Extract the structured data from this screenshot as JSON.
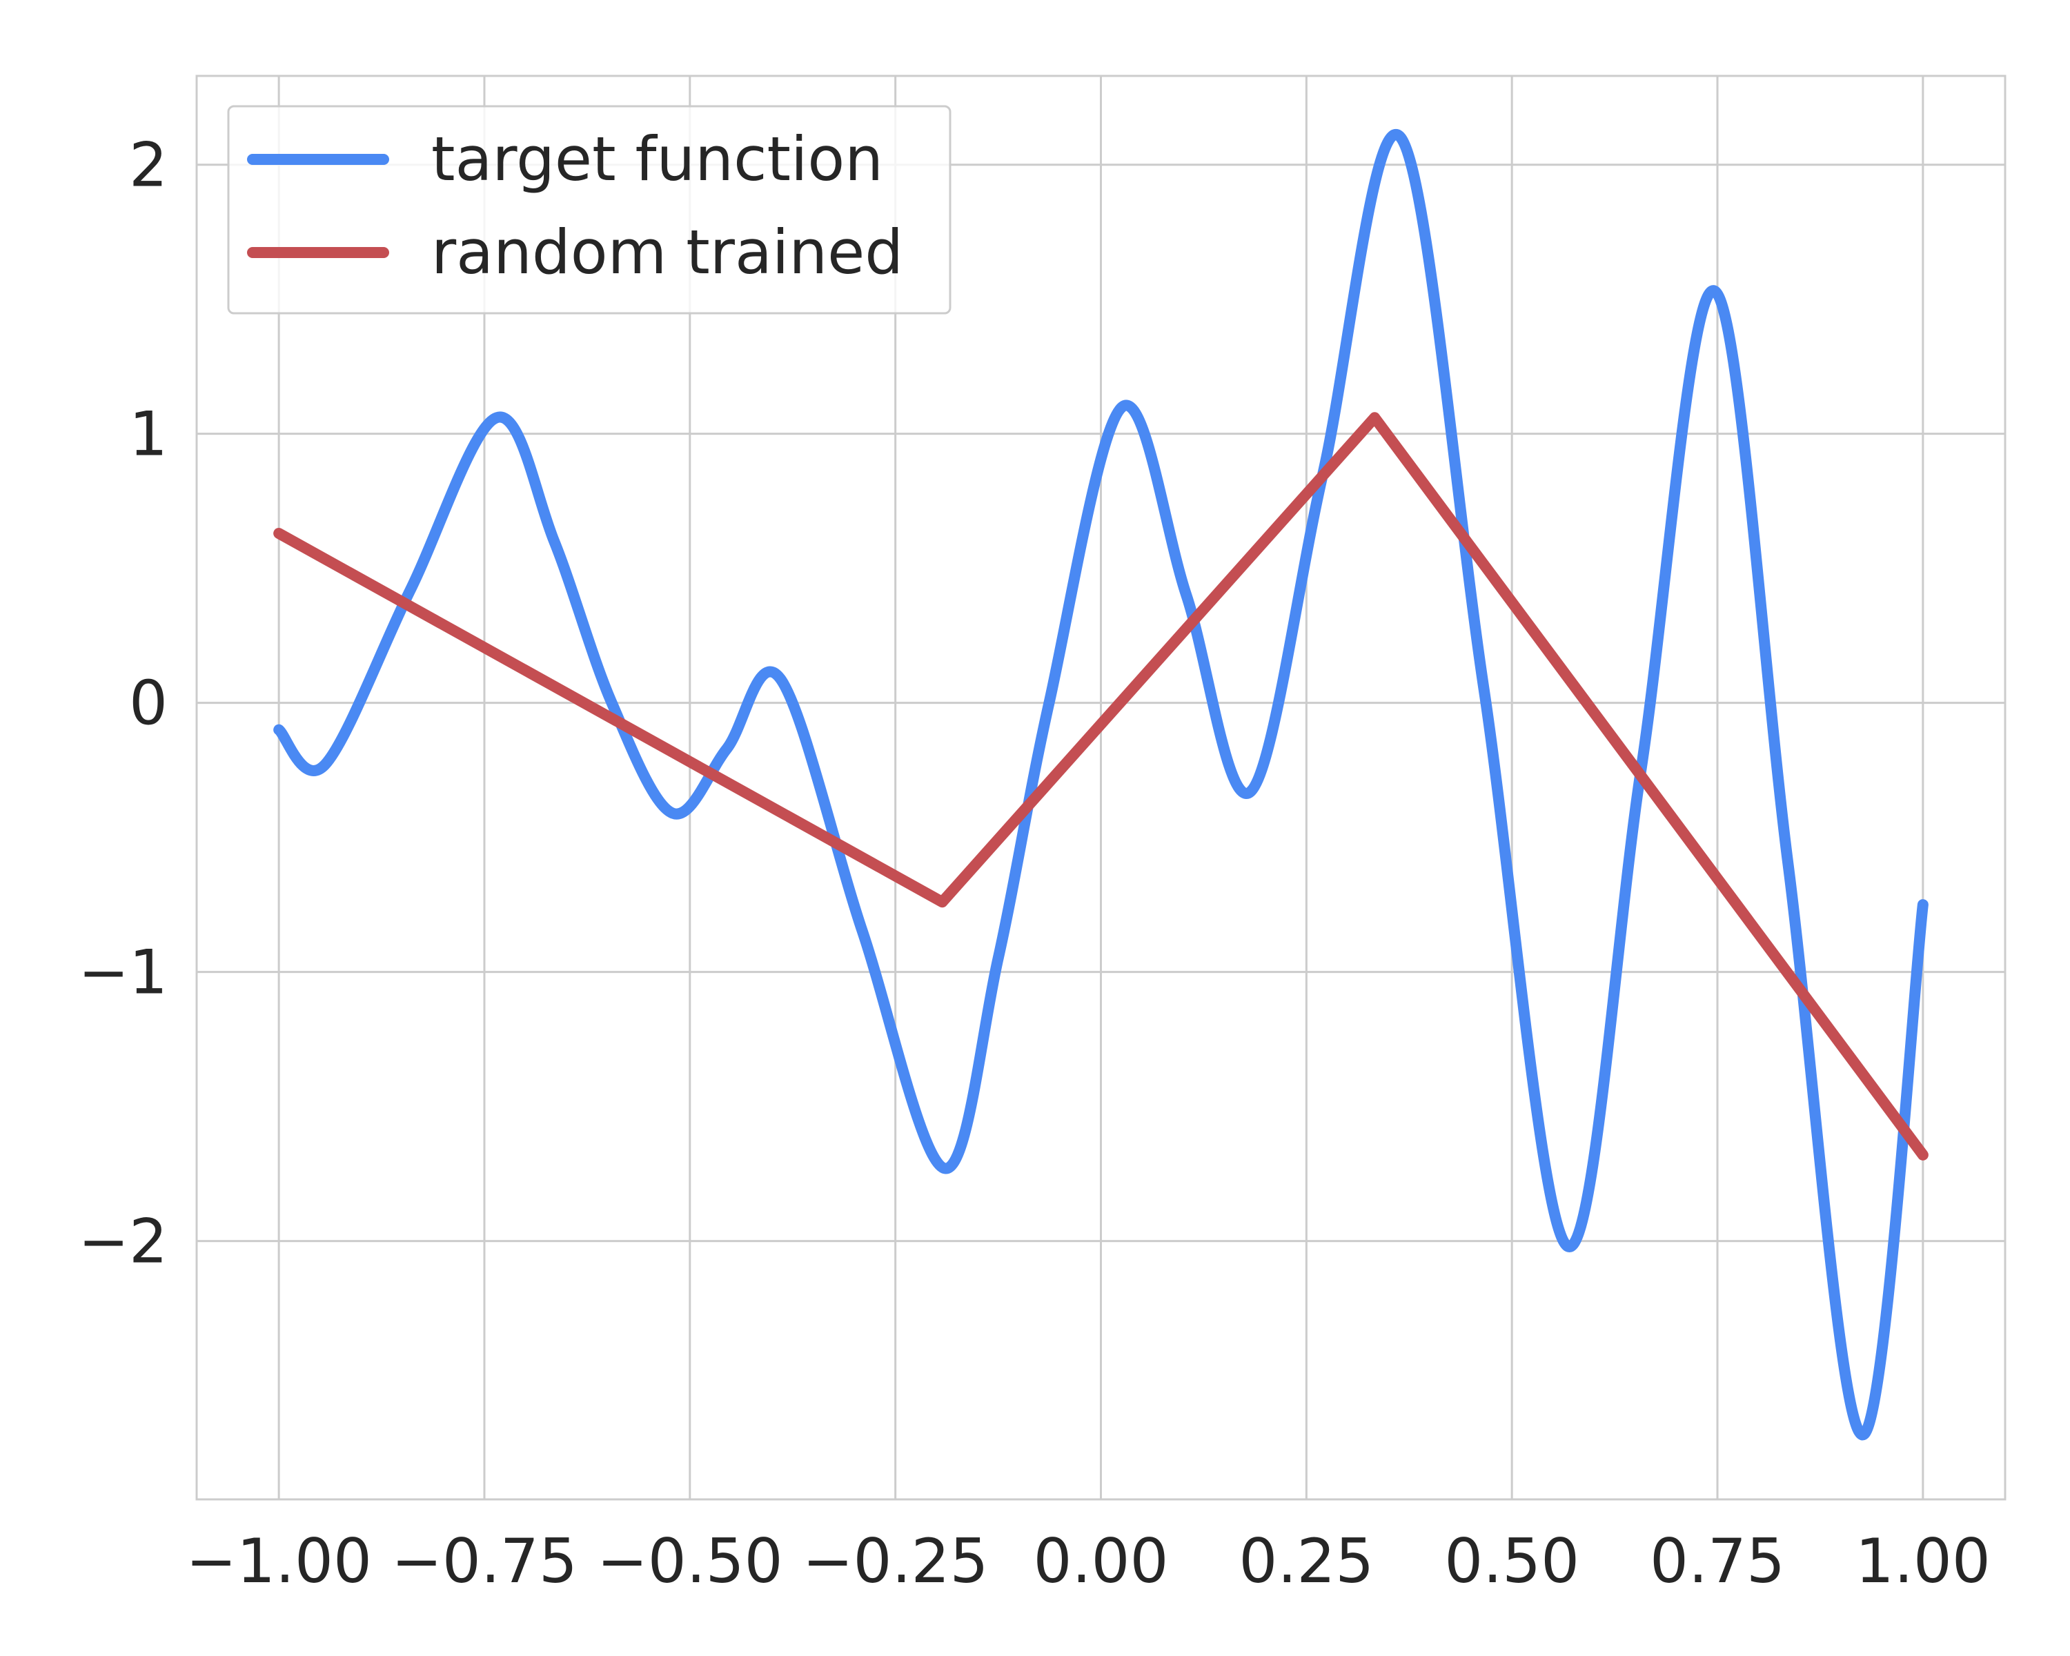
{
  "chart_data": {
    "type": "line",
    "xlim": [
      -1.1,
      1.1
    ],
    "ylim": [
      -2.96,
      2.33
    ],
    "xticks": [
      {
        "value": -1,
        "label": "−1.00"
      },
      {
        "value": -0.75,
        "label": "−0.75"
      },
      {
        "value": -0.5,
        "label": "−0.50"
      },
      {
        "value": -0.25,
        "label": "−0.25"
      },
      {
        "value": 0,
        "label": "0.00"
      },
      {
        "value": 0.25,
        "label": "0.25"
      },
      {
        "value": 0.5,
        "label": "0.50"
      },
      {
        "value": 0.75,
        "label": "0.75"
      },
      {
        "value": 1,
        "label": "1.00"
      }
    ],
    "yticks": [
      {
        "value": -2,
        "label": "−2"
      },
      {
        "value": -1,
        "label": "−1"
      },
      0,
      1,
      2
    ],
    "grid": true,
    "legend": "upper left",
    "series": [
      {
        "name": "target function",
        "color": "#4a89f3",
        "x": [
          -1,
          -0.944,
          -0.84,
          -0.735,
          -0.665,
          -0.595,
          -0.521,
          -0.455,
          -0.39,
          -0.29,
          -0.19,
          -0.125,
          -0.063,
          0.026,
          0.104,
          0.182,
          0.27,
          0.365,
          0.466,
          0.568,
          0.657,
          0.747,
          0.836,
          0.926,
          1
        ],
        "values": [
          -0.1,
          -0.23,
          0.42,
          1.06,
          0.6,
          0,
          -0.41,
          -0.17,
          0.09,
          -0.85,
          -1.73,
          -0.95,
          0,
          1.1,
          0.4,
          -0.33,
          0.85,
          2.1,
          0.05,
          -2.02,
          -0.25,
          1.53,
          -0.6,
          -2.72,
          -0.75
        ]
      },
      {
        "name": "random trained",
        "color": "#c44e52",
        "x": [
          -1,
          -0.193,
          0.333,
          1
        ],
        "values": [
          0.63,
          -0.74,
          1.06,
          -1.68
        ]
      }
    ]
  }
}
